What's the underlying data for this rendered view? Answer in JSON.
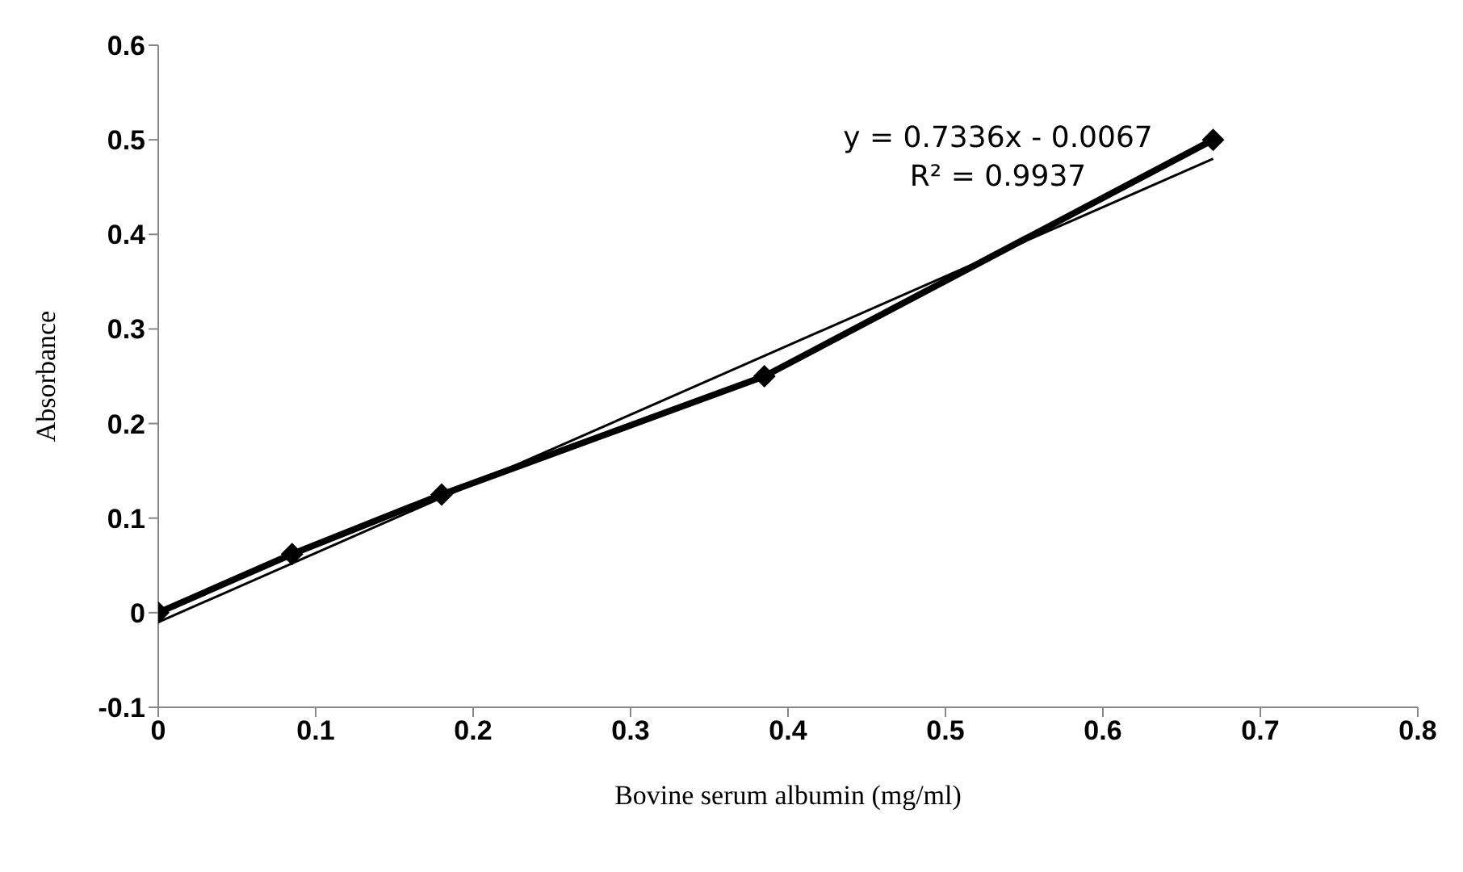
{
  "chart_data": {
    "type": "line",
    "xlabel": "Bovine serum albumin (mg/ml)",
    "ylabel": "Absorbance",
    "x": [
      0,
      0.085,
      0.18,
      0.385,
      0.67
    ],
    "series": [
      {
        "color": "#000000",
        "values": [
          0,
          0.062,
          0.125,
          0.25,
          0.5
        ],
        "marker": "diamond"
      },
      {
        "type": "line",
        "color": "#000000",
        "x": [
          0,
          0.67
        ],
        "values": [
          -0.01,
          0.48
        ],
        "marker": "none"
      }
    ],
    "xlim": [
      0,
      0.8
    ],
    "xticks": [
      0,
      0.1,
      0.2,
      0.3,
      0.4,
      0.5,
      0.6,
      0.7,
      0.8
    ],
    "ylim": [
      -0.1,
      0.6
    ],
    "yticks": [
      -0.1,
      0,
      0.1,
      0.2,
      0.3,
      0.4,
      0.5,
      0.6
    ],
    "annotations": [
      "y = 0.7336x - 0.0067",
      "R² = 0.9937"
    ],
    "grid": false,
    "legend": false
  }
}
